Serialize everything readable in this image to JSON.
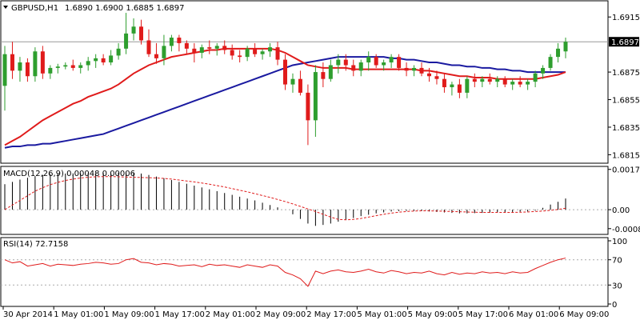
{
  "header": {
    "symbol": "GBPUSD,H1",
    "ohlc": "1.6890 1.6900 1.6885 1.6897",
    "macd_label": "MACD(12,26,9) 0.00048 0.00006",
    "rsi_label": "RSI(14) 72.7158"
  },
  "colors": {
    "up": "#2e9e2e",
    "down": "#e01b1b",
    "ma_fast": "#e01b1b",
    "ma_slow": "#1a1aa0",
    "macd_signal": "#e01b1b",
    "rsi": "#e01b1b",
    "grid": "#000000"
  },
  "chart_data": [
    {
      "type": "candlestick",
      "title": "GBPUSD,H1",
      "price_label": "1.6897",
      "ylim": [
        1.681,
        1.6925
      ],
      "y_ticks": [
        "1.6915",
        "1.6897",
        "1.6875",
        "1.6855",
        "1.6835",
        "1.6815"
      ],
      "x_ticks": [
        "30 Apr 2014",
        "1 May 01:00",
        "1 May 09:00",
        "1 May 17:00",
        "2 May 01:00",
        "2 May 09:00",
        "2 May 17:00",
        "5 May 01:00",
        "5 May 09:00",
        "5 May 17:00",
        "6 May 01:00",
        "6 May 09:00"
      ],
      "candles": [
        [
          1.6865,
          1.6894,
          1.6847,
          1.6888
        ],
        [
          1.6888,
          1.6897,
          1.687,
          1.6876
        ],
        [
          1.6876,
          1.6886,
          1.6868,
          1.6882
        ],
        [
          1.6882,
          1.6885,
          1.6868,
          1.6872
        ],
        [
          1.6872,
          1.6893,
          1.6868,
          1.689
        ],
        [
          1.689,
          1.6894,
          1.687,
          1.6874
        ],
        [
          1.6874,
          1.688,
          1.687,
          1.6878
        ],
        [
          1.6878,
          1.6881,
          1.6874,
          1.6879
        ],
        [
          1.6879,
          1.6882,
          1.6877,
          1.688
        ],
        [
          1.688,
          1.6884,
          1.6876,
          1.6878
        ],
        [
          1.6878,
          1.6882,
          1.6874,
          1.688
        ],
        [
          1.688,
          1.6886,
          1.6876,
          1.6883
        ],
        [
          1.6883,
          1.6888,
          1.6878,
          1.6885
        ],
        [
          1.6885,
          1.6888,
          1.688,
          1.6882
        ],
        [
          1.6882,
          1.6891,
          1.688,
          1.6887
        ],
        [
          1.6887,
          1.6896,
          1.6884,
          1.6892
        ],
        [
          1.6892,
          1.6918,
          1.6888,
          1.6903
        ],
        [
          1.6903,
          1.6914,
          1.6898,
          1.6908
        ],
        [
          1.6908,
          1.6913,
          1.6895,
          1.6898
        ],
        [
          1.6898,
          1.6906,
          1.6886,
          1.6888
        ],
        [
          1.6888,
          1.6896,
          1.6881,
          1.6885
        ],
        [
          1.6885,
          1.6902,
          1.688,
          1.6894
        ],
        [
          1.6894,
          1.6902,
          1.689,
          1.69
        ],
        [
          1.69,
          1.6902,
          1.689,
          1.6896
        ],
        [
          1.6896,
          1.6898,
          1.6888,
          1.6892
        ],
        [
          1.6892,
          1.6896,
          1.6882,
          1.6889
        ],
        [
          1.6889,
          1.6895,
          1.6885,
          1.6893
        ],
        [
          1.6893,
          1.6898,
          1.6888,
          1.6892
        ],
        [
          1.6892,
          1.6896,
          1.6887,
          1.6894
        ],
        [
          1.6894,
          1.6898,
          1.6888,
          1.6891
        ],
        [
          1.6891,
          1.6895,
          1.6884,
          1.6887
        ],
        [
          1.6887,
          1.6891,
          1.6882,
          1.6886
        ],
        [
          1.6886,
          1.6894,
          1.6883,
          1.6892
        ],
        [
          1.6892,
          1.6896,
          1.6886,
          1.6888
        ],
        [
          1.6888,
          1.6892,
          1.6884,
          1.689
        ],
        [
          1.689,
          1.6896,
          1.6886,
          1.6893
        ],
        [
          1.6893,
          1.6897,
          1.688,
          1.6884
        ],
        [
          1.6884,
          1.6888,
          1.6862,
          1.6866
        ],
        [
          1.6866,
          1.6874,
          1.686,
          1.687
        ],
        [
          1.687,
          1.6876,
          1.6858,
          1.686
        ],
        [
          1.686,
          1.6866,
          1.6822,
          1.684
        ],
        [
          1.684,
          1.688,
          1.6828,
          1.6875
        ],
        [
          1.6875,
          1.6882,
          1.6864,
          1.687
        ],
        [
          1.687,
          1.6884,
          1.6868,
          1.688
        ],
        [
          1.688,
          1.6888,
          1.6874,
          1.6884
        ],
        [
          1.6884,
          1.6888,
          1.6876,
          1.688
        ],
        [
          1.688,
          1.6884,
          1.6872,
          1.6876
        ],
        [
          1.6876,
          1.6884,
          1.6872,
          1.6882
        ],
        [
          1.6882,
          1.689,
          1.6876,
          1.6886
        ],
        [
          1.6886,
          1.6888,
          1.6878,
          1.688
        ],
        [
          1.688,
          1.6884,
          1.6876,
          1.6882
        ],
        [
          1.6882,
          1.6888,
          1.6878,
          1.6886
        ],
        [
          1.6886,
          1.6888,
          1.6876,
          1.6878
        ],
        [
          1.6878,
          1.6882,
          1.6872,
          1.6876
        ],
        [
          1.6876,
          1.688,
          1.6872,
          1.6878
        ],
        [
          1.6878,
          1.6882,
          1.6872,
          1.6874
        ],
        [
          1.6874,
          1.6878,
          1.6868,
          1.6872
        ],
        [
          1.6872,
          1.6876,
          1.6866,
          1.687
        ],
        [
          1.687,
          1.6874,
          1.686,
          1.6864
        ],
        [
          1.6864,
          1.6868,
          1.6858,
          1.6866
        ],
        [
          1.6866,
          1.687,
          1.6856,
          1.686
        ],
        [
          1.686,
          1.6872,
          1.6856,
          1.687
        ],
        [
          1.687,
          1.6874,
          1.6864,
          1.6868
        ],
        [
          1.6868,
          1.6872,
          1.6864,
          1.687
        ],
        [
          1.687,
          1.6874,
          1.6866,
          1.6868
        ],
        [
          1.6868,
          1.6872,
          1.6864,
          1.687
        ],
        [
          1.687,
          1.6872,
          1.6864,
          1.6866
        ],
        [
          1.6866,
          1.687,
          1.6862,
          1.6868
        ],
        [
          1.6868,
          1.6872,
          1.6864,
          1.6866
        ],
        [
          1.6866,
          1.687,
          1.6862,
          1.6868
        ],
        [
          1.6868,
          1.6876,
          1.6864,
          1.6874
        ],
        [
          1.6874,
          1.688,
          1.687,
          1.6878
        ],
        [
          1.6878,
          1.6888,
          1.6876,
          1.6886
        ],
        [
          1.6886,
          1.6896,
          1.6882,
          1.6892
        ],
        [
          1.689,
          1.69,
          1.6885,
          1.6897
        ]
      ],
      "ma_fast": [
        1.6822,
        1.6825,
        1.6828,
        1.6832,
        1.6836,
        1.684,
        1.6843,
        1.6846,
        1.6849,
        1.6852,
        1.6854,
        1.6857,
        1.6859,
        1.6861,
        1.6863,
        1.6866,
        1.687,
        1.6874,
        1.6877,
        1.688,
        1.6882,
        1.6884,
        1.6886,
        1.6887,
        1.6888,
        1.6889,
        1.689,
        1.6891,
        1.6891,
        1.6892,
        1.6892,
        1.6892,
        1.6892,
        1.6892,
        1.6892,
        1.6892,
        1.6891,
        1.6889,
        1.6886,
        1.6883,
        1.688,
        1.6879,
        1.6878,
        1.6878,
        1.6878,
        1.6878,
        1.6877,
        1.6877,
        1.6877,
        1.6877,
        1.6877,
        1.6877,
        1.6877,
        1.6877,
        1.6877,
        1.6876,
        1.6876,
        1.6875,
        1.6874,
        1.6873,
        1.6872,
        1.6872,
        1.6871,
        1.6871,
        1.6871,
        1.687,
        1.687,
        1.687,
        1.687,
        1.687,
        1.687,
        1.6871,
        1.6872,
        1.6873,
        1.6875
      ],
      "ma_slow": [
        1.682,
        1.6821,
        1.6821,
        1.6822,
        1.6822,
        1.6823,
        1.6823,
        1.6824,
        1.6825,
        1.6826,
        1.6827,
        1.6828,
        1.6829,
        1.683,
        1.6832,
        1.6834,
        1.6836,
        1.6838,
        1.684,
        1.6842,
        1.6844,
        1.6846,
        1.6848,
        1.685,
        1.6852,
        1.6854,
        1.6856,
        1.6858,
        1.686,
        1.6862,
        1.6864,
        1.6866,
        1.6868,
        1.687,
        1.6872,
        1.6874,
        1.6876,
        1.6878,
        1.688,
        1.6881,
        1.6882,
        1.6883,
        1.6884,
        1.6885,
        1.6886,
        1.6886,
        1.6886,
        1.6886,
        1.6886,
        1.6886,
        1.6886,
        1.6885,
        1.6885,
        1.6884,
        1.6884,
        1.6883,
        1.6882,
        1.6882,
        1.6881,
        1.688,
        1.688,
        1.6879,
        1.6879,
        1.6878,
        1.6878,
        1.6877,
        1.6877,
        1.6876,
        1.6876,
        1.6875,
        1.6875,
        1.6875,
        1.6875,
        1.6875,
        1.6875
      ]
    },
    {
      "type": "bar",
      "title": "MACD(12,26,9) 0.00048 0.00006",
      "ylim": [
        -0.001,
        0.0018
      ],
      "y_ticks": [
        "0.00174",
        "0.00",
        "-0.00082"
      ],
      "values": [
        0.0011,
        0.0012,
        0.0013,
        0.00138,
        0.00145,
        0.0015,
        0.00153,
        0.00155,
        0.00156,
        0.00157,
        0.00157,
        0.00157,
        0.00158,
        0.00158,
        0.00158,
        0.00159,
        0.00159,
        0.00158,
        0.00156,
        0.0015,
        0.00143,
        0.00136,
        0.00128,
        0.0012,
        0.00112,
        0.00104,
        0.00096,
        0.00088,
        0.0008,
        0.00072,
        0.00064,
        0.00056,
        0.00048,
        0.0004,
        0.0003,
        0.0002,
        0.0001,
        0.0,
        -0.0002,
        -0.0004,
        -0.0006,
        -0.0007,
        -0.00066,
        -0.0006,
        -0.00052,
        -0.00044,
        -0.00036,
        -0.00028,
        -0.00022,
        -0.00016,
        -0.00012,
        -8e-05,
        -6e-05,
        -5e-05,
        -5e-05,
        -6e-05,
        -8e-05,
        -0.0001,
        -0.00012,
        -0.00014,
        -0.00016,
        -0.00016,
        -0.00015,
        -0.00014,
        -0.00013,
        -0.00012,
        -0.00011,
        -0.0001,
        -9e-05,
        -8e-05,
        -4e-05,
        8e-05,
        0.00022,
        0.00034,
        0.00048
      ],
      "signal": [
        0.0,
        0.0002,
        0.0004,
        0.0006,
        0.0008,
        0.00095,
        0.00108,
        0.00118,
        0.00126,
        0.00132,
        0.00137,
        0.0014,
        0.00142,
        0.00143,
        0.00143,
        0.00142,
        0.00141,
        0.0014,
        0.00139,
        0.00138,
        0.00137,
        0.00135,
        0.00132,
        0.00128,
        0.00124,
        0.0012,
        0.00115,
        0.0011,
        0.00104,
        0.00098,
        0.00091,
        0.00084,
        0.00077,
        0.00069,
        0.00061,
        0.00053,
        0.00044,
        0.00035,
        0.00025,
        0.00014,
        3e-05,
        -8e-05,
        -0.0002,
        -0.00032,
        -0.00042,
        -0.00044,
        -0.00042,
        -0.00038,
        -0.00032,
        -0.00026,
        -0.0002,
        -0.00015,
        -0.00011,
        -8e-05,
        -6e-05,
        -5e-05,
        -5e-05,
        -6e-05,
        -7e-05,
        -8e-05,
        -9e-05,
        -0.0001,
        -0.00011,
        -0.00012,
        -0.00012,
        -0.00012,
        -0.00012,
        -0.00012,
        -0.00011,
        -0.0001,
        -8e-05,
        -6e-05,
        -3e-05,
        1e-05,
        6e-05
      ]
    },
    {
      "type": "line",
      "title": "RSI(14) 72.7158",
      "ylim": [
        0,
        100
      ],
      "y_ticks": [
        "100",
        "70",
        "30",
        "0"
      ],
      "levels": [
        70,
        30
      ],
      "values": [
        70,
        65,
        67,
        60,
        62,
        64,
        60,
        63,
        62,
        61,
        63,
        64,
        66,
        65,
        63,
        64,
        70,
        72,
        66,
        65,
        62,
        64,
        63,
        60,
        61,
        62,
        59,
        63,
        61,
        62,
        60,
        58,
        62,
        60,
        58,
        62,
        60,
        50,
        46,
        40,
        28,
        52,
        48,
        52,
        54,
        51,
        50,
        52,
        55,
        51,
        49,
        53,
        51,
        48,
        50,
        49,
        52,
        48,
        46,
        50,
        47,
        49,
        48,
        51,
        49,
        50,
        48,
        51,
        49,
        50,
        56,
        61,
        66,
        70,
        72.7158
      ]
    }
  ]
}
